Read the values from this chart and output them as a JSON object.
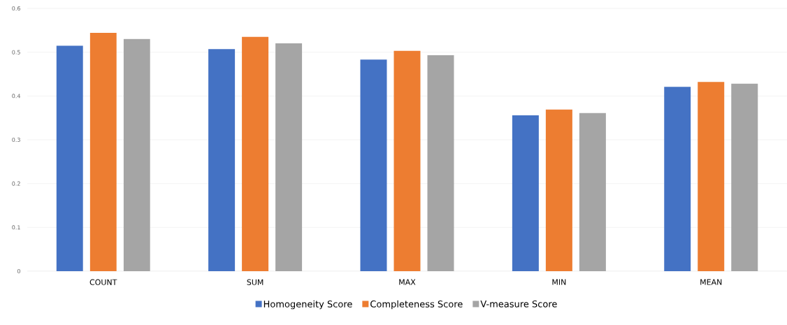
{
  "chart_data": {
    "type": "bar",
    "categories": [
      "COUNT",
      "SUM",
      "MAX",
      "MIN",
      "MEAN"
    ],
    "series": [
      {
        "name": "Homogeneity Score",
        "color": "#4472c4",
        "values": [
          0.515,
          0.507,
          0.483,
          0.356,
          0.421
        ]
      },
      {
        "name": "Completeness Score",
        "color": "#ed7d31",
        "values": [
          0.544,
          0.535,
          0.503,
          0.369,
          0.432
        ]
      },
      {
        "name": "V-measure Score",
        "color": "#a5a5a5",
        "values": [
          0.53,
          0.52,
          0.493,
          0.361,
          0.428
        ]
      }
    ],
    "ylim": [
      0,
      0.6
    ],
    "yticks": [
      0,
      0.1,
      0.2,
      0.3,
      0.4,
      0.5,
      0.6
    ],
    "grid": "y",
    "legend": "bottom"
  }
}
